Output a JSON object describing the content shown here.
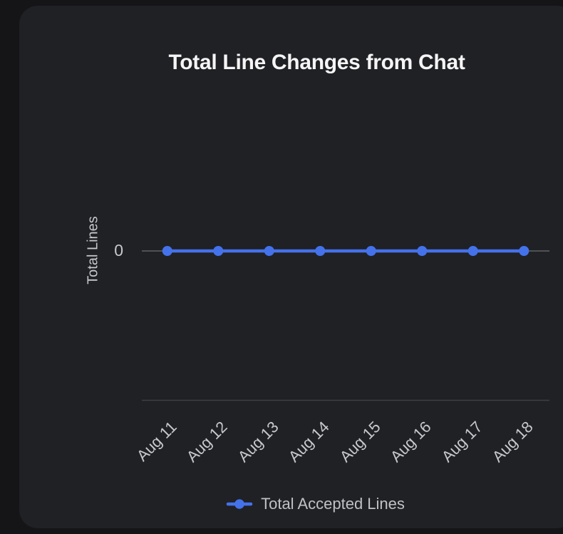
{
  "chart_data": {
    "type": "line",
    "title": "Total Line Changes from Chat",
    "ylabel": "Total Lines",
    "xlabel": "",
    "categories": [
      "Aug 11",
      "Aug 12",
      "Aug 13",
      "Aug 14",
      "Aug 15",
      "Aug 16",
      "Aug 17",
      "Aug 18"
    ],
    "series": [
      {
        "name": "Total Accepted Lines",
        "values": [
          0,
          0,
          0,
          0,
          0,
          0,
          0,
          0
        ],
        "color": "#4472eb",
        "marker": "circle"
      }
    ],
    "yticks": [
      "0"
    ],
    "x_tick_rotation": -45,
    "grid": "zero-line-only",
    "legend_position": "bottom"
  },
  "colors": {
    "background": "#151518",
    "card": "#202125",
    "title_text": "#f5f5f6",
    "tick_text": "#c7c8cb",
    "legend_text": "#c0c1c4",
    "accent": "#4472eb",
    "zero_gridline": "#515154",
    "axis_line": "#3f4043"
  }
}
